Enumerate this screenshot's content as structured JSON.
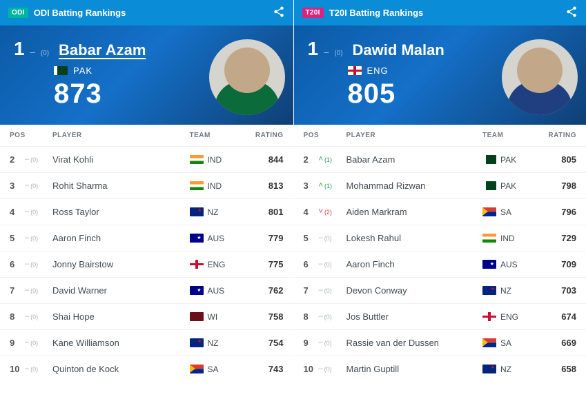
{
  "panels": [
    {
      "badge": "ODI",
      "title": "ODI Batting Rankings",
      "hero": {
        "rank": "1",
        "trend_symbol": "–",
        "trend_value": "(0)",
        "name": "Babar Azam",
        "name_underline": true,
        "country_code": "PAK",
        "flag": "PAK",
        "points": "873",
        "avatar_class": "av-odi"
      },
      "columns": {
        "pos": "POS",
        "player": "PLAYER",
        "team": "TEAM",
        "rating": "RATING"
      },
      "rows": [
        {
          "pos": "2",
          "chg_dir": "none",
          "chg_sym": "–",
          "chg_val": "(0)",
          "player": "Virat Kohli",
          "flag": "IND",
          "team": "IND",
          "rating": "844"
        },
        {
          "pos": "3",
          "chg_dir": "none",
          "chg_sym": "–",
          "chg_val": "(0)",
          "player": "Rohit Sharma",
          "flag": "IND",
          "team": "IND",
          "rating": "813"
        },
        {
          "pos": "4",
          "chg_dir": "none",
          "chg_sym": "–",
          "chg_val": "(0)",
          "player": "Ross Taylor",
          "flag": "NZ",
          "team": "NZ",
          "rating": "801"
        },
        {
          "pos": "5",
          "chg_dir": "none",
          "chg_sym": "–",
          "chg_val": "(0)",
          "player": "Aaron Finch",
          "flag": "AUS",
          "team": "AUS",
          "rating": "779"
        },
        {
          "pos": "6",
          "chg_dir": "none",
          "chg_sym": "–",
          "chg_val": "(0)",
          "player": "Jonny Bairstow",
          "flag": "ENG",
          "team": "ENG",
          "rating": "775"
        },
        {
          "pos": "7",
          "chg_dir": "none",
          "chg_sym": "–",
          "chg_val": "(0)",
          "player": "David Warner",
          "flag": "AUS",
          "team": "AUS",
          "rating": "762"
        },
        {
          "pos": "8",
          "chg_dir": "none",
          "chg_sym": "–",
          "chg_val": "(0)",
          "player": "Shai Hope",
          "flag": "WI",
          "team": "WI",
          "rating": "758"
        },
        {
          "pos": "9",
          "chg_dir": "none",
          "chg_sym": "–",
          "chg_val": "(0)",
          "player": "Kane Williamson",
          "flag": "NZ",
          "team": "NZ",
          "rating": "754"
        },
        {
          "pos": "10",
          "chg_dir": "none",
          "chg_sym": "–",
          "chg_val": "(0)",
          "player": "Quinton de Kock",
          "flag": "SA",
          "team": "SA",
          "rating": "743"
        }
      ]
    },
    {
      "badge": "T20I",
      "title": "T20I Batting Rankings",
      "hero": {
        "rank": "1",
        "trend_symbol": "–",
        "trend_value": "(0)",
        "name": "Dawid Malan",
        "name_underline": false,
        "country_code": "ENG",
        "flag": "ENG",
        "points": "805",
        "avatar_class": "av-t20"
      },
      "columns": {
        "pos": "POS",
        "player": "PLAYER",
        "team": "TEAM",
        "rating": "RATING"
      },
      "rows": [
        {
          "pos": "2",
          "chg_dir": "up",
          "chg_sym": "˄",
          "chg_val": "(1)",
          "player": "Babar Azam",
          "flag": "PAK",
          "team": "PAK",
          "rating": "805"
        },
        {
          "pos": "3",
          "chg_dir": "up",
          "chg_sym": "˄",
          "chg_val": "(1)",
          "player": "Mohammad Rizwan",
          "flag": "PAK",
          "team": "PAK",
          "rating": "798"
        },
        {
          "pos": "4",
          "chg_dir": "down",
          "chg_sym": "˅",
          "chg_val": "(2)",
          "player": "Aiden Markram",
          "flag": "SA",
          "team": "SA",
          "rating": "796"
        },
        {
          "pos": "5",
          "chg_dir": "none",
          "chg_sym": "–",
          "chg_val": "(0)",
          "player": "Lokesh Rahul",
          "flag": "IND",
          "team": "IND",
          "rating": "729"
        },
        {
          "pos": "6",
          "chg_dir": "none",
          "chg_sym": "–",
          "chg_val": "(0)",
          "player": "Aaron Finch",
          "flag": "AUS",
          "team": "AUS",
          "rating": "709"
        },
        {
          "pos": "7",
          "chg_dir": "none",
          "chg_sym": "–",
          "chg_val": "(0)",
          "player": "Devon Conway",
          "flag": "NZ",
          "team": "NZ",
          "rating": "703"
        },
        {
          "pos": "8",
          "chg_dir": "none",
          "chg_sym": "–",
          "chg_val": "(0)",
          "player": "Jos Buttler",
          "flag": "ENG",
          "team": "ENG",
          "rating": "674"
        },
        {
          "pos": "9",
          "chg_dir": "none",
          "chg_sym": "–",
          "chg_val": "(0)",
          "player": "Rassie van der Dussen",
          "flag": "SA",
          "team": "SA",
          "rating": "669"
        },
        {
          "pos": "10",
          "chg_dir": "none",
          "chg_sym": "–",
          "chg_val": "(0)",
          "player": "Martin Guptill",
          "flag": "NZ",
          "team": "NZ",
          "rating": "658"
        }
      ]
    }
  ]
}
